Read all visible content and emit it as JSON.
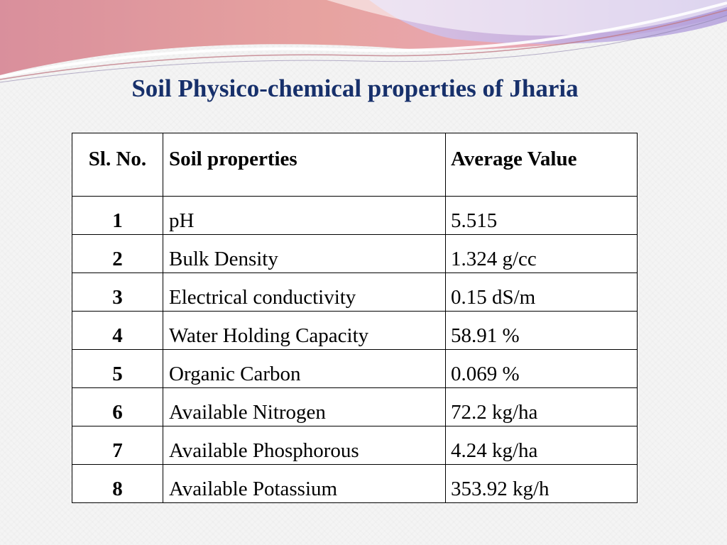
{
  "slide": {
    "title": "Soil Physico-chemical properties of Jharia"
  },
  "table": {
    "headers": {
      "sl_no": "Sl. No.",
      "property": "Soil  properties",
      "value": "Average Value"
    },
    "rows": [
      {
        "sl_no": "1",
        "property": "pH",
        "value": "5.515"
      },
      {
        "sl_no": "2",
        "property": "Bulk Density",
        "value": "1.324 g/cc"
      },
      {
        "sl_no": "3",
        "property": "Electrical conductivity",
        "value": "0.15 dS/m"
      },
      {
        "sl_no": "4",
        "property": "Water Holding Capacity",
        "value": "58.91 %"
      },
      {
        "sl_no": "5",
        "property": "Organic Carbon",
        "value": "0.069 %"
      },
      {
        "sl_no": "6",
        "property": "Available Nitrogen",
        "value": "72.2 kg/ha"
      },
      {
        "sl_no": "7",
        "property": "Available Phosphorous",
        "value": "4.24 kg/ha"
      },
      {
        "sl_no": "8",
        "property": "Available Potassium",
        "value": "353.92 kg/h"
      }
    ]
  },
  "colors": {
    "title": "#17306b",
    "band_pink": "#e89aa0",
    "band_lavender": "#b5a6d8",
    "background": "#f4f4f4"
  }
}
